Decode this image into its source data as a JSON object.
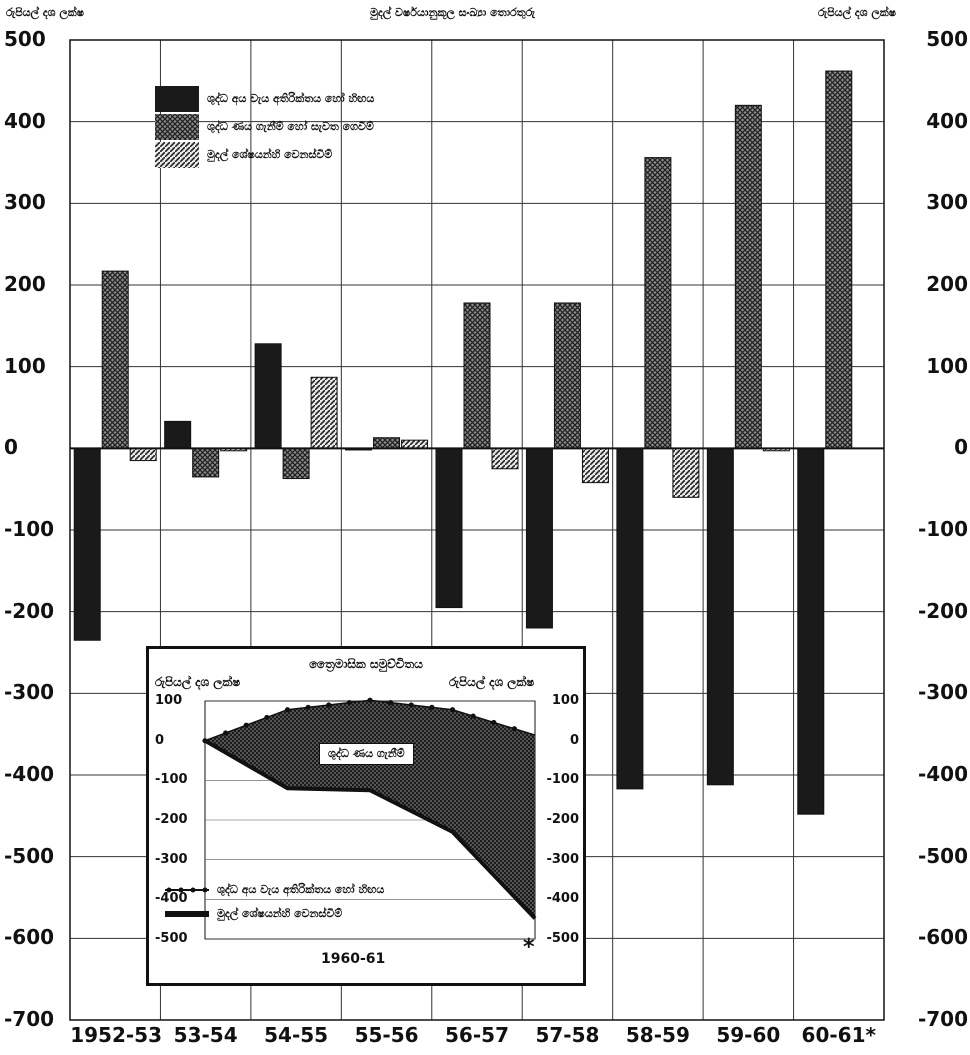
{
  "page": {
    "title": "මුදල් වර්ෂයානුකූල සංඛ්‍යා තොරතුරු",
    "left_unit": "රුපියල් දශ ලක්ෂ",
    "right_unit": "රුපියල් දශ ලක්ෂ"
  },
  "chart_data": [
    {
      "type": "bar",
      "title": "මුදල් වර්ෂයානුකූල සංඛ්‍යා තොරතුරු",
      "ylabel_left": "රුපියල් දශ ලක්ෂ",
      "ylabel_right": "රුපියල් දශ ලක්ෂ",
      "ylim": [
        -700,
        500
      ],
      "yticks": [
        500,
        400,
        300,
        200,
        100,
        0,
        -100,
        -200,
        -300,
        -400,
        -500,
        -600,
        -700
      ],
      "ytick_labels_left": [
        "500",
        "400",
        "300",
        "200",
        "100",
        "0",
        "-100",
        "-200",
        "-300",
        "-400",
        "-500",
        "-600",
        "-700"
      ],
      "ytick_labels_right": [
        "500",
        "400",
        "300",
        "200",
        "100",
        "0",
        "-100",
        "-200",
        "-300",
        "-400",
        "-500",
        "-600",
        "-700"
      ],
      "categories": [
        "1952-53",
        "53-54",
        "54-55",
        "55-56",
        "56-57",
        "57-58",
        "58-59",
        "59-60",
        "60-61*"
      ],
      "grid": true,
      "legend_position": "top-left",
      "series": [
        {
          "name": "ශුද්ධ අය වැය අතිරික්තය හෝ හිඟය",
          "fill": "solid",
          "color": "#1a1a1a",
          "values": [
            -235,
            33,
            128,
            -2,
            -195,
            -220,
            -417,
            -412,
            -448
          ]
        },
        {
          "name": "ශුද්ධ ණය ගැනීම් හෝ සැවත ගෙවීම්",
          "fill": "crosshatch",
          "color": "#444444",
          "values": [
            217,
            -35,
            -37,
            13,
            178,
            178,
            356,
            420,
            462
          ]
        },
        {
          "name": "මුදල් ශේෂයන්හි වෙනස්වීම්",
          "fill": "diagonal",
          "color": "#555555",
          "values": [
            -15,
            -3,
            87,
            10,
            -25,
            -42,
            -60,
            -3,
            0
          ]
        }
      ]
    },
    {
      "type": "area",
      "title": "ත්‍රෛමාසික සමුච්චිතය",
      "ylabel_left": "රුපියල් දශ ලක්ෂ",
      "ylabel_right": "රුපියල් දශ ලක්ෂ",
      "xlabel": "1960-61",
      "ylim": [
        -500,
        100
      ],
      "yticks": [
        100,
        0,
        -100,
        -200,
        -300,
        -400,
        -500
      ],
      "ytick_labels": [
        "100",
        "0",
        "-100",
        "-200",
        "-300",
        "-400",
        "-500"
      ],
      "area_label": "ශුද්ධ ණය ගැනීම්",
      "footnote_mark": "*",
      "series": [
        {
          "name": "ශුද්ධ අය වැය අතිරික්තය හෝ හිඟය",
          "style": "dotted-line",
          "x": [
            0,
            1,
            2,
            3,
            4
          ],
          "values": [
            0,
            -120,
            -125,
            -230,
            -448
          ]
        },
        {
          "name": "මුදල් ශේෂයන්හි වෙනස්වීම්",
          "style": "solid-line",
          "x": [
            0,
            1,
            2,
            3,
            4
          ],
          "values": [
            0,
            78,
            102,
            78,
            14
          ]
        }
      ]
    }
  ]
}
